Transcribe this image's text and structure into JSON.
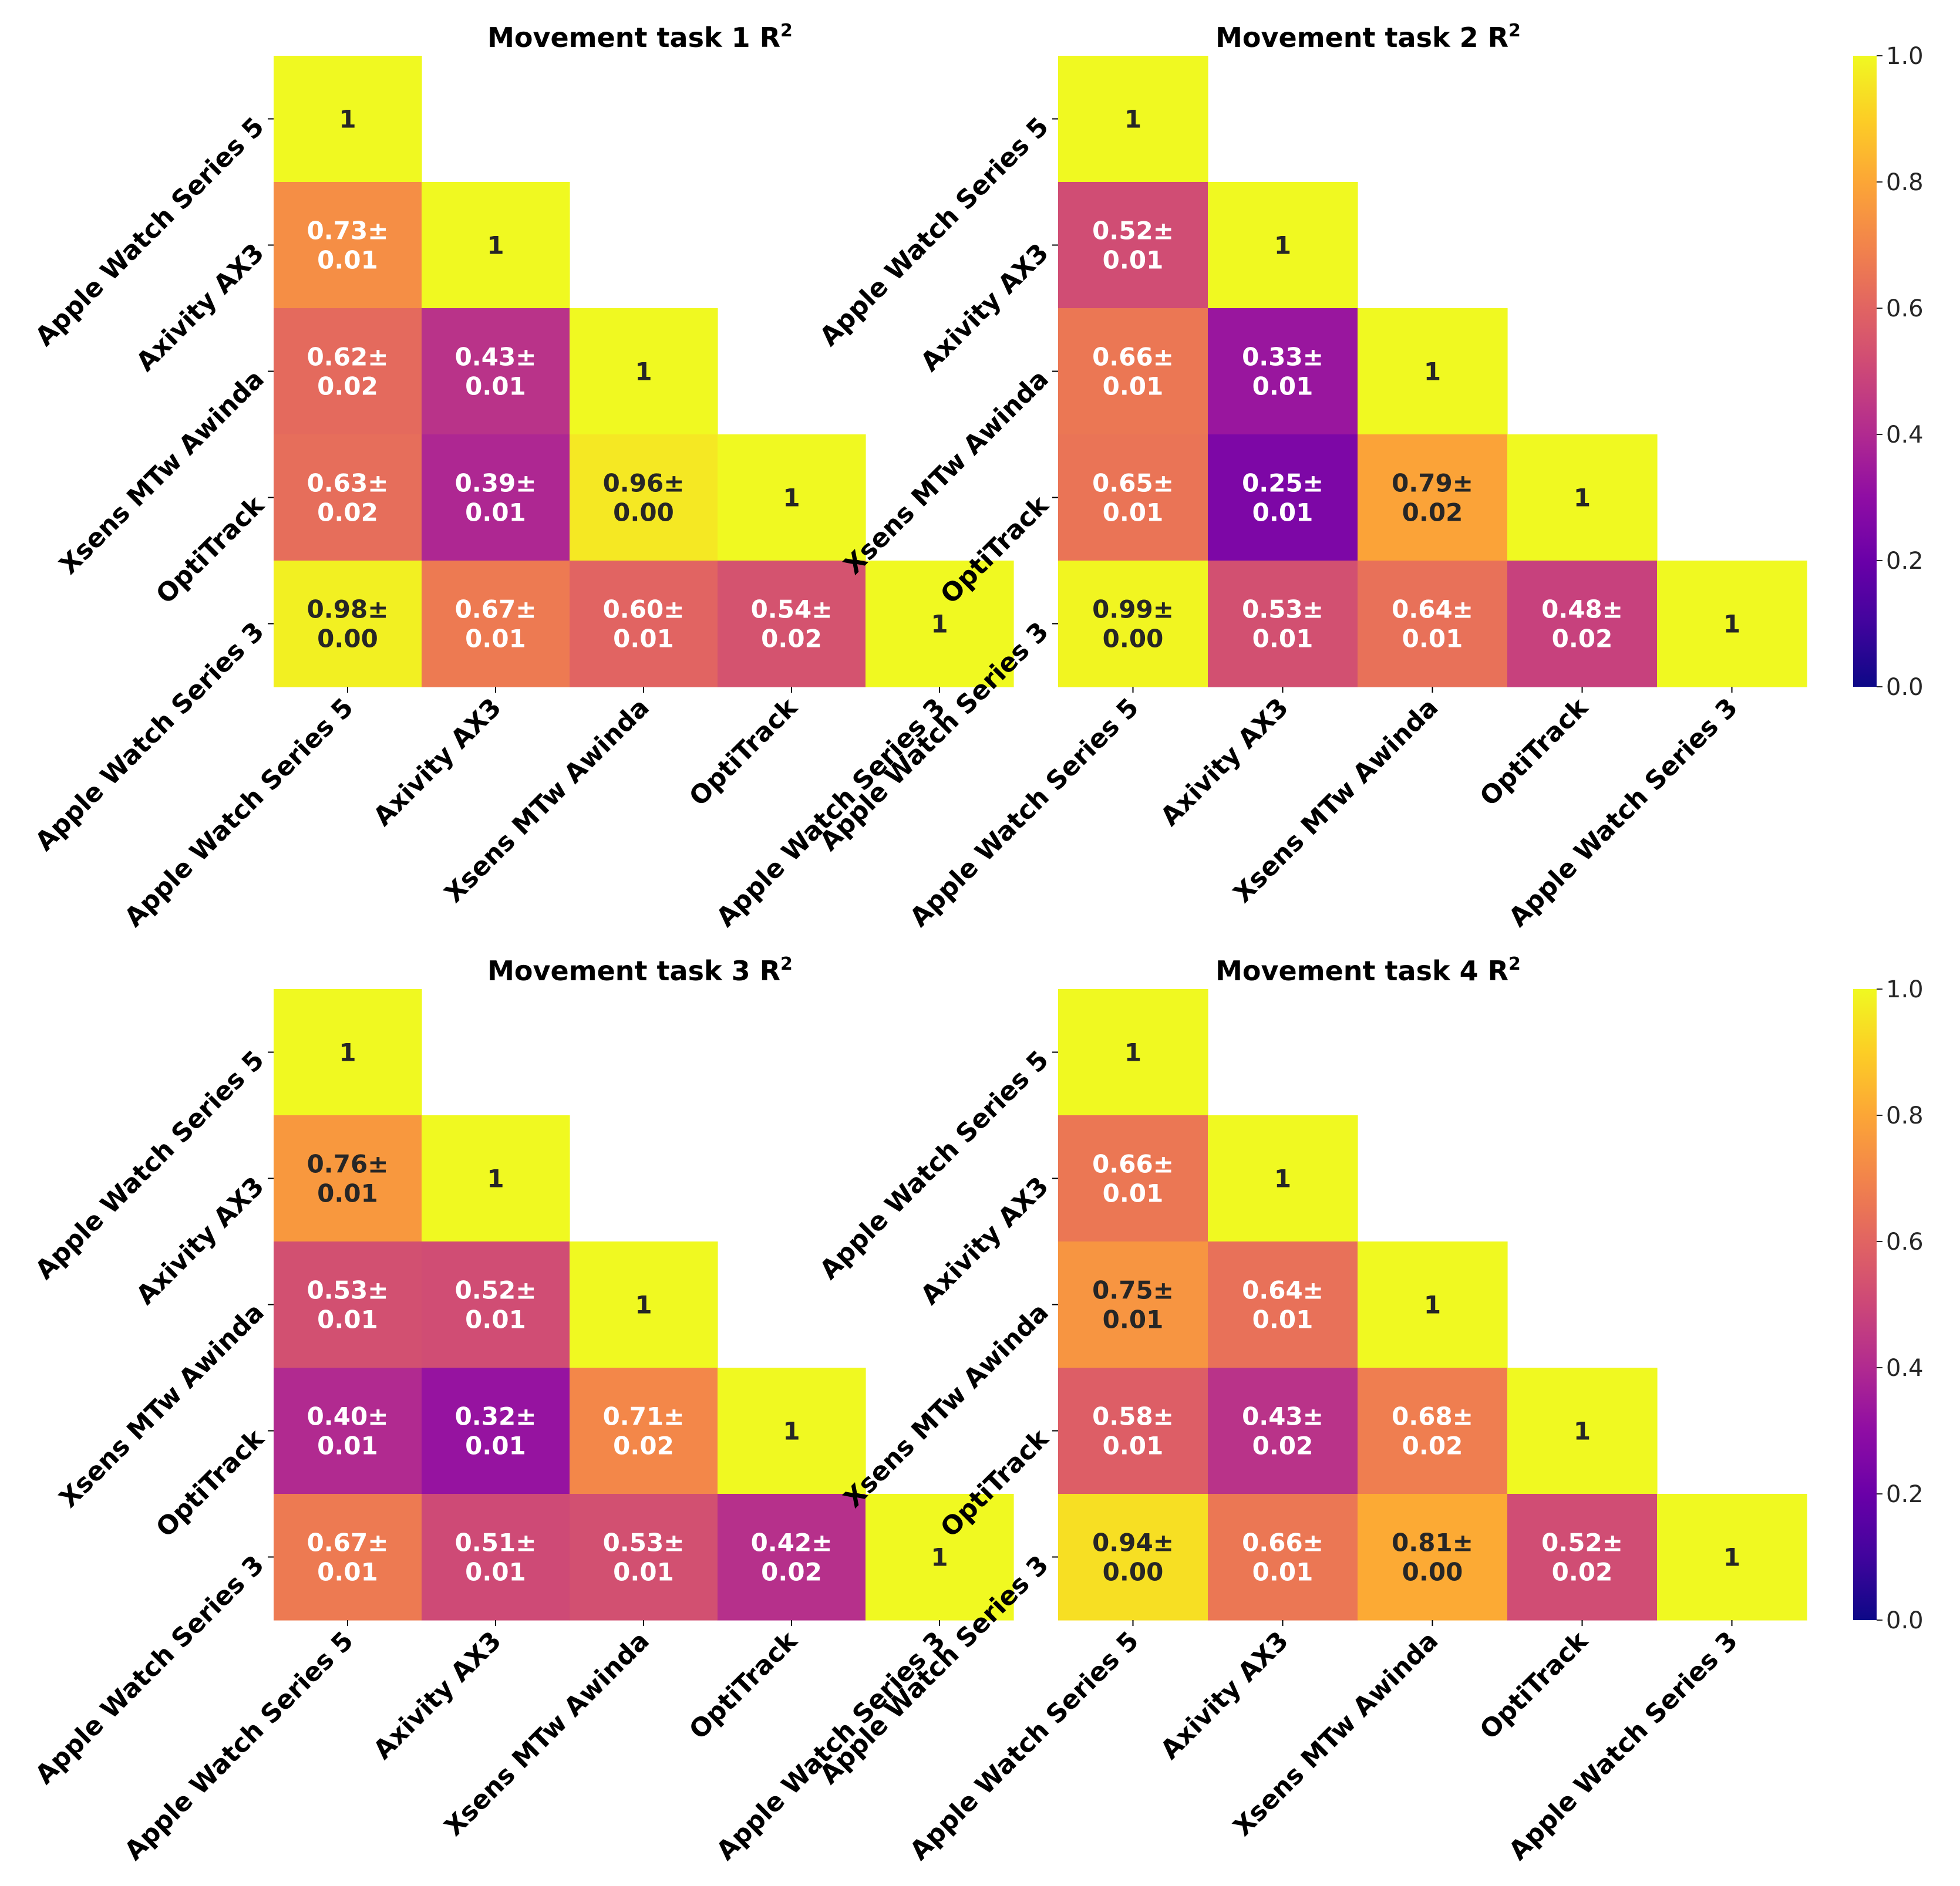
{
  "chart_data": [
    {
      "type": "heatmap",
      "title": "Movement task 1 R",
      "title_superscript": "2",
      "x_categories": [
        "Apple Watch Series 5",
        "Axivity AX3",
        "Xsens MTw Awinda",
        "OptiTrack",
        "Apple Watch Series 3"
      ],
      "y_categories": [
        "Apple Watch Series 5",
        "Axivity AX3",
        "Xsens MTw Awinda",
        "OptiTrack",
        "Apple Watch Series 3"
      ],
      "matrix": [
        [
          1
        ],
        [
          0.73,
          1
        ],
        [
          0.62,
          0.43,
          1
        ],
        [
          0.63,
          0.39,
          0.96,
          1
        ],
        [
          0.98,
          0.67,
          0.6,
          0.54,
          1
        ]
      ],
      "annotations": [
        [
          "1"
        ],
        [
          "0.73±\n0.01",
          "1"
        ],
        [
          "0.62±\n0.02",
          "0.43±\n0.01",
          "1"
        ],
        [
          "0.63±\n0.02",
          "0.39±\n0.01",
          "0.96±\n0.00",
          "1"
        ],
        [
          "0.98±\n0.00",
          "0.67±\n0.01",
          "0.60±\n0.01",
          "0.54±\n0.02",
          "1"
        ]
      ]
    },
    {
      "type": "heatmap",
      "title": "Movement task 2 R",
      "title_superscript": "2",
      "x_categories": [
        "Apple Watch Series 5",
        "Axivity AX3",
        "Xsens MTw Awinda",
        "OptiTrack",
        "Apple Watch Series 3"
      ],
      "y_categories": [
        "Apple Watch Series 5",
        "Axivity AX3",
        "Xsens MTw Awinda",
        "OptiTrack",
        "Apple Watch Series 3"
      ],
      "matrix": [
        [
          1
        ],
        [
          0.52,
          1
        ],
        [
          0.66,
          0.33,
          1
        ],
        [
          0.65,
          0.25,
          0.79,
          1
        ],
        [
          0.99,
          0.53,
          0.64,
          0.48,
          1
        ]
      ],
      "annotations": [
        [
          "1"
        ],
        [
          "0.52±\n0.01",
          "1"
        ],
        [
          "0.66±\n0.01",
          "0.33±\n0.01",
          "1"
        ],
        [
          "0.65±\n0.01",
          "0.25±\n0.01",
          "0.79±\n0.02",
          "1"
        ],
        [
          "0.99±\n0.00",
          "0.53±\n0.01",
          "0.64±\n0.01",
          "0.48±\n0.02",
          "1"
        ]
      ]
    },
    {
      "type": "heatmap",
      "title": "Movement task 3 R",
      "title_superscript": "2",
      "x_categories": [
        "Apple Watch Series 5",
        "Axivity AX3",
        "Xsens MTw Awinda",
        "OptiTrack",
        "Apple Watch Series 3"
      ],
      "y_categories": [
        "Apple Watch Series 5",
        "Axivity AX3",
        "Xsens MTw Awinda",
        "OptiTrack",
        "Apple Watch Series 3"
      ],
      "matrix": [
        [
          1
        ],
        [
          0.76,
          1
        ],
        [
          0.53,
          0.52,
          1
        ],
        [
          0.4,
          0.32,
          0.71,
          1
        ],
        [
          0.67,
          0.51,
          0.53,
          0.42,
          1
        ]
      ],
      "annotations": [
        [
          "1"
        ],
        [
          "0.76±\n0.01",
          "1"
        ],
        [
          "0.53±\n0.01",
          "0.52±\n0.01",
          "1"
        ],
        [
          "0.40±\n0.01",
          "0.32±\n0.01",
          "0.71±\n0.02",
          "1"
        ],
        [
          "0.67±\n0.01",
          "0.51±\n0.01",
          "0.53±\n0.01",
          "0.42±\n0.02",
          "1"
        ]
      ]
    },
    {
      "type": "heatmap",
      "title": "Movement task 4 R",
      "title_superscript": "2",
      "x_categories": [
        "Apple Watch Series 5",
        "Axivity AX3",
        "Xsens MTw Awinda",
        "OptiTrack",
        "Apple Watch Series 3"
      ],
      "y_categories": [
        "Apple Watch Series 5",
        "Axivity AX3",
        "Xsens MTw Awinda",
        "OptiTrack",
        "Apple Watch Series 3"
      ],
      "matrix": [
        [
          1
        ],
        [
          0.66,
          1
        ],
        [
          0.75,
          0.64,
          1
        ],
        [
          0.58,
          0.43,
          0.68,
          1
        ],
        [
          0.94,
          0.66,
          0.81,
          0.52,
          1
        ]
      ],
      "annotations": [
        [
          "1"
        ],
        [
          "0.66±\n0.01",
          "1"
        ],
        [
          "0.75±\n0.01",
          "0.64±\n0.01",
          "1"
        ],
        [
          "0.58±\n0.01",
          "0.43±\n0.02",
          "0.68±\n0.02",
          "1"
        ],
        [
          "0.94±\n0.00",
          "0.66±\n0.01",
          "0.81±\n0.00",
          "0.52±\n0.02",
          "1"
        ]
      ]
    }
  ],
  "colorbar": {
    "colormap": "plasma",
    "range": [
      0.0,
      1.0
    ],
    "tick_labels": [
      "0.0",
      "0.2",
      "0.4",
      "0.6",
      "0.8",
      "1.0"
    ]
  }
}
